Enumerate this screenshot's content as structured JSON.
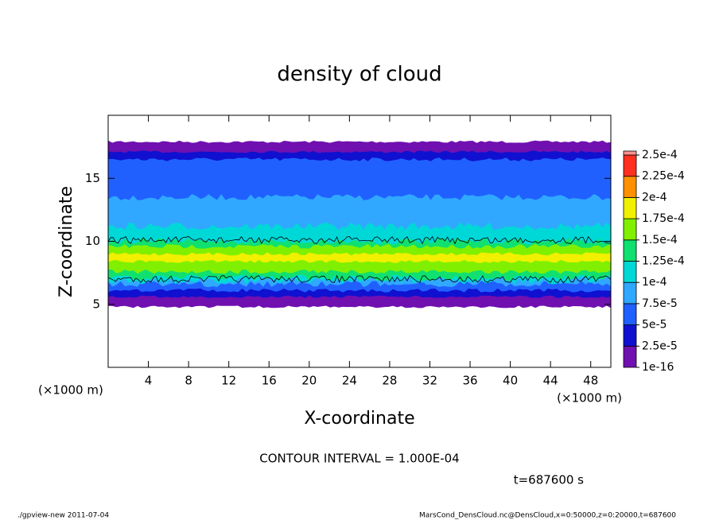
{
  "chart_data": {
    "type": "contour",
    "title": "density of cloud",
    "xlabel": "X-coordinate",
    "ylabel": "Z-coordinate",
    "x_unit": "(×1000 m)",
    "y_unit": "(×1000 m)",
    "xlim": [
      0,
      50
    ],
    "ylim": [
      0,
      20
    ],
    "xticks": [
      4,
      8,
      12,
      16,
      20,
      24,
      28,
      32,
      36,
      40,
      44,
      48
    ],
    "yticks": [
      5,
      10,
      15
    ],
    "levels": [
      {
        "value": 1e-16,
        "label": "1e-16"
      },
      {
        "value": 2.5e-05,
        "label": "2.5e-5"
      },
      {
        "value": 5e-05,
        "label": "5e-5"
      },
      {
        "value": 7.5e-05,
        "label": "7.5e-5"
      },
      {
        "value": 0.0001,
        "label": "1e-4"
      },
      {
        "value": 0.000125,
        "label": "1.25e-4"
      },
      {
        "value": 0.00015,
        "label": "1.5e-4"
      },
      {
        "value": 0.000175,
        "label": "1.75e-4"
      },
      {
        "value": 0.0002,
        "label": "2e-4"
      },
      {
        "value": 0.000225,
        "label": "2.25e-4"
      },
      {
        "value": 0.00025,
        "label": "2.5e-4"
      }
    ],
    "colors": [
      "#7010b0",
      "#1010d0",
      "#2060ff",
      "#30a8ff",
      "#00d8d8",
      "#10e070",
      "#80f000",
      "#f0f000",
      "#ff9000",
      "#ff3020"
    ],
    "contour_interval": "CONTOUR INTERVAL = 1.000E-04",
    "time_label": "t=687600 s",
    "footer_left": "./gpview-new  2011-07-04",
    "footer_right": "MarsCond_DensCloud.nc@DensCloud,x=0:50000,z=0:20000,t=687600"
  }
}
